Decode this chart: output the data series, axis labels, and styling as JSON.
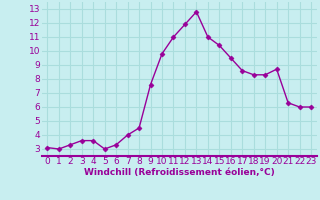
{
  "x": [
    0,
    1,
    2,
    3,
    4,
    5,
    6,
    7,
    8,
    9,
    10,
    11,
    12,
    13,
    14,
    15,
    16,
    17,
    18,
    19,
    20,
    21,
    22,
    23
  ],
  "y": [
    3.1,
    3.0,
    3.3,
    3.6,
    3.6,
    3.0,
    3.3,
    4.0,
    4.5,
    7.6,
    9.8,
    11.0,
    11.9,
    12.8,
    11.0,
    10.4,
    9.5,
    8.6,
    8.3,
    8.3,
    8.7,
    6.3,
    6.0,
    6.0
  ],
  "line_color": "#990099",
  "marker": "D",
  "marker_size": 2.5,
  "bg_color": "#c8eef0",
  "grid_color": "#aadddd",
  "xlabel": "Windchill (Refroidissement éolien,°C)",
  "xlabel_color": "#990099",
  "tick_color": "#990099",
  "spine_color": "#990099",
  "ylim": [
    2.5,
    13.5
  ],
  "xlim": [
    -0.5,
    23.5
  ],
  "yticks": [
    3,
    4,
    5,
    6,
    7,
    8,
    9,
    10,
    11,
    12,
    13
  ],
  "xticks": [
    0,
    1,
    2,
    3,
    4,
    5,
    6,
    7,
    8,
    9,
    10,
    11,
    12,
    13,
    14,
    15,
    16,
    17,
    18,
    19,
    20,
    21,
    22,
    23
  ],
  "line_width": 1.0,
  "xlabel_fontsize": 6.5,
  "tick_fontsize": 6.5
}
